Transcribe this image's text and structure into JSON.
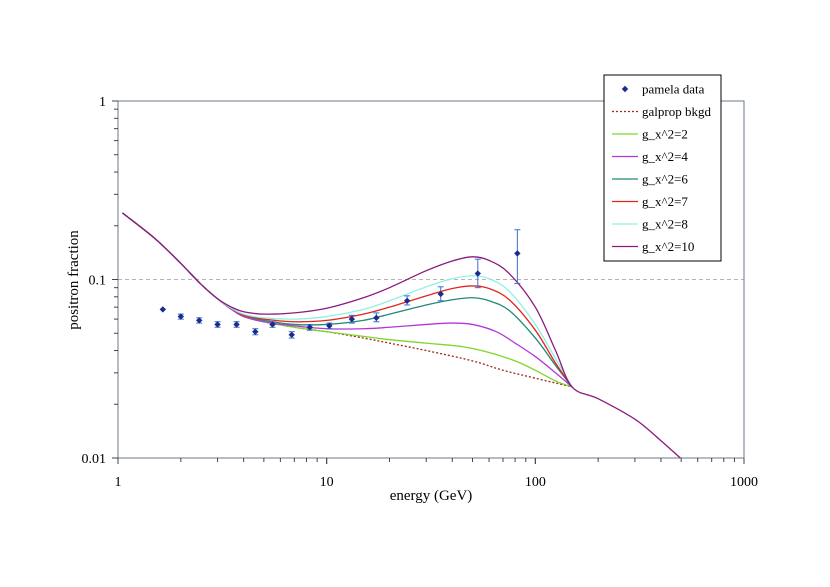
{
  "chart_data": {
    "type": "line",
    "title": "",
    "xlabel": "energy (GeV)",
    "ylabel": "positron fraction",
    "xscale": "log",
    "yscale": "log",
    "xlim": [
      1,
      1000
    ],
    "ylim": [
      0.01,
      1
    ],
    "x_tick_labels": [
      "1",
      "10",
      "100",
      "1000"
    ],
    "y_tick_labels": [
      "1",
      "0.1",
      "0.01"
    ],
    "x_ticks": [
      1,
      10,
      100,
      1000
    ],
    "y_ticks": [
      1,
      0.1,
      0.01
    ],
    "gridlines": [
      {
        "axis": "y",
        "value": 0.1,
        "style": "dashed"
      }
    ],
    "legend_position": "top-right",
    "series": [
      {
        "name": "pamela data",
        "kind": "points",
        "color": "#1a2c8c",
        "points": [
          {
            "x": 1.64,
            "y": 0.068,
            "err": [
              0.002,
              0.002
            ]
          },
          {
            "x": 2.0,
            "y": 0.062,
            "err": [
              0.002,
              0.002
            ]
          },
          {
            "x": 2.45,
            "y": 0.059,
            "err": [
              0.002,
              0.002
            ]
          },
          {
            "x": 3.0,
            "y": 0.056,
            "err": [
              0.002,
              0.002
            ]
          },
          {
            "x": 3.7,
            "y": 0.056,
            "err": [
              0.002,
              0.002
            ]
          },
          {
            "x": 4.55,
            "y": 0.051,
            "err": [
              0.002,
              0.002
            ]
          },
          {
            "x": 5.5,
            "y": 0.056,
            "err": [
              0.002,
              0.002
            ]
          },
          {
            "x": 6.8,
            "y": 0.049,
            "err": [
              0.002,
              0.002
            ]
          },
          {
            "x": 8.3,
            "y": 0.054,
            "err": [
              0.002,
              0.002
            ]
          },
          {
            "x": 10.3,
            "y": 0.055,
            "err": [
              0.002,
              0.002
            ]
          },
          {
            "x": 13.2,
            "y": 0.06,
            "err": [
              0.003,
              0.003
            ]
          },
          {
            "x": 17.3,
            "y": 0.061,
            "err": [
              0.003,
              0.004
            ]
          },
          {
            "x": 24.3,
            "y": 0.076,
            "err": [
              0.004,
              0.005
            ]
          },
          {
            "x": 35.2,
            "y": 0.083,
            "err": [
              0.007,
              0.008
            ]
          },
          {
            "x": 53.0,
            "y": 0.108,
            "err": [
              0.018,
              0.022
            ]
          },
          {
            "x": 82.0,
            "y": 0.14,
            "err": [
              0.045,
              0.05
            ]
          }
        ]
      },
      {
        "name": "galprop bkgd",
        "kind": "line",
        "dash": "dotted",
        "color": "#a0281e",
        "points": [
          [
            1.05,
            0.236
          ],
          [
            1.5,
            0.17
          ],
          [
            2,
            0.123
          ],
          [
            2.5,
            0.094
          ],
          [
            3,
            0.078
          ],
          [
            3.5,
            0.068
          ],
          [
            4,
            0.062
          ],
          [
            5,
            0.058
          ],
          [
            7,
            0.054
          ],
          [
            10,
            0.051
          ],
          [
            15,
            0.047
          ],
          [
            20,
            0.044
          ],
          [
            30,
            0.04
          ],
          [
            50,
            0.035
          ],
          [
            70,
            0.031
          ],
          [
            100,
            0.028
          ],
          [
            150,
            0.025
          ]
        ]
      },
      {
        "name": "g_x^2=2",
        "kind": "line",
        "color": "#7ed62c",
        "points": [
          [
            1.05,
            0.236
          ],
          [
            1.5,
            0.17
          ],
          [
            2,
            0.123
          ],
          [
            2.5,
            0.094
          ],
          [
            3,
            0.078
          ],
          [
            3.5,
            0.068
          ],
          [
            4,
            0.062
          ],
          [
            5,
            0.058
          ],
          [
            7,
            0.054
          ],
          [
            10,
            0.051
          ],
          [
            15,
            0.048
          ],
          [
            20,
            0.046
          ],
          [
            30,
            0.044
          ],
          [
            45,
            0.042
          ],
          [
            60,
            0.039
          ],
          [
            80,
            0.035
          ],
          [
            100,
            0.031
          ],
          [
            125,
            0.027
          ],
          [
            150,
            0.025
          ]
        ]
      },
      {
        "name": "g_x^2=4",
        "kind": "line",
        "color": "#b038d8",
        "points": [
          [
            1.05,
            0.236
          ],
          [
            1.5,
            0.17
          ],
          [
            2,
            0.123
          ],
          [
            2.5,
            0.094
          ],
          [
            3,
            0.078
          ],
          [
            3.5,
            0.068
          ],
          [
            4,
            0.062
          ],
          [
            5,
            0.058
          ],
          [
            7,
            0.055
          ],
          [
            10,
            0.053
          ],
          [
            15,
            0.053
          ],
          [
            20,
            0.054
          ],
          [
            30,
            0.056
          ],
          [
            40,
            0.057
          ],
          [
            50,
            0.056
          ],
          [
            65,
            0.051
          ],
          [
            80,
            0.044
          ],
          [
            100,
            0.037
          ],
          [
            125,
            0.03
          ],
          [
            150,
            0.025
          ]
        ]
      },
      {
        "name": "g_x^2=6",
        "kind": "line",
        "color": "#1f8a78",
        "points": [
          [
            1.05,
            0.236
          ],
          [
            1.5,
            0.17
          ],
          [
            2,
            0.123
          ],
          [
            2.5,
            0.094
          ],
          [
            3,
            0.078
          ],
          [
            3.5,
            0.069
          ],
          [
            4,
            0.063
          ],
          [
            5,
            0.059
          ],
          [
            7,
            0.056
          ],
          [
            10,
            0.056
          ],
          [
            15,
            0.059
          ],
          [
            20,
            0.064
          ],
          [
            30,
            0.072
          ],
          [
            40,
            0.077
          ],
          [
            50,
            0.079
          ],
          [
            60,
            0.076
          ],
          [
            75,
            0.067
          ],
          [
            100,
            0.047
          ],
          [
            125,
            0.033
          ],
          [
            150,
            0.025
          ]
        ]
      },
      {
        "name": "g_x^2=7",
        "kind": "line",
        "color": "#e0261e",
        "points": [
          [
            1.05,
            0.236
          ],
          [
            1.5,
            0.17
          ],
          [
            2,
            0.123
          ],
          [
            2.5,
            0.094
          ],
          [
            3,
            0.078
          ],
          [
            3.5,
            0.069
          ],
          [
            4,
            0.063
          ],
          [
            5,
            0.06
          ],
          [
            7,
            0.058
          ],
          [
            10,
            0.059
          ],
          [
            15,
            0.064
          ],
          [
            20,
            0.07
          ],
          [
            30,
            0.081
          ],
          [
            40,
            0.089
          ],
          [
            50,
            0.092
          ],
          [
            60,
            0.089
          ],
          [
            75,
            0.077
          ],
          [
            100,
            0.052
          ],
          [
            125,
            0.034
          ],
          [
            150,
            0.025
          ]
        ]
      },
      {
        "name": "g_x^2=8",
        "kind": "line",
        "color": "#8ff0e4",
        "points": [
          [
            1.05,
            0.236
          ],
          [
            1.5,
            0.17
          ],
          [
            2,
            0.123
          ],
          [
            2.5,
            0.094
          ],
          [
            3,
            0.078
          ],
          [
            3.5,
            0.069
          ],
          [
            4,
            0.064
          ],
          [
            5,
            0.061
          ],
          [
            7,
            0.06
          ],
          [
            10,
            0.062
          ],
          [
            15,
            0.068
          ],
          [
            20,
            0.076
          ],
          [
            30,
            0.091
          ],
          [
            40,
            0.101
          ],
          [
            50,
            0.105
          ],
          [
            60,
            0.101
          ],
          [
            75,
            0.086
          ],
          [
            100,
            0.056
          ],
          [
            125,
            0.036
          ],
          [
            150,
            0.025
          ]
        ]
      },
      {
        "name": "g_x^2=10",
        "kind": "line",
        "color": "#8a1a7e",
        "points": [
          [
            1.05,
            0.236
          ],
          [
            1.5,
            0.17
          ],
          [
            2,
            0.123
          ],
          [
            2.5,
            0.094
          ],
          [
            3,
            0.078
          ],
          [
            3.5,
            0.07
          ],
          [
            4,
            0.066
          ],
          [
            5,
            0.064
          ],
          [
            7,
            0.065
          ],
          [
            10,
            0.069
          ],
          [
            15,
            0.079
          ],
          [
            20,
            0.09
          ],
          [
            30,
            0.112
          ],
          [
            40,
            0.127
          ],
          [
            50,
            0.134
          ],
          [
            60,
            0.128
          ],
          [
            75,
            0.108
          ],
          [
            100,
            0.07
          ],
          [
            125,
            0.04
          ],
          [
            150,
            0.025
          ],
          [
            200,
            0.0215
          ],
          [
            300,
            0.0165
          ],
          [
            400,
            0.0125
          ],
          [
            500,
            0.0099
          ]
        ]
      }
    ]
  }
}
